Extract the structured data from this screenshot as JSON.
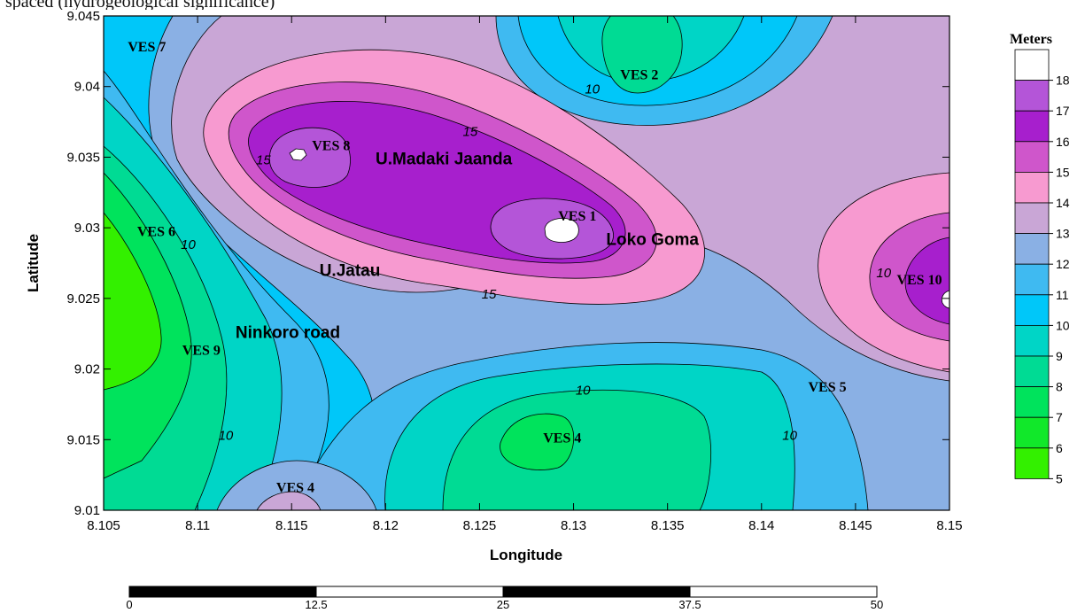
{
  "caption_fragment": "spaced (hydrogeological significance)",
  "map": {
    "xlabel": "Longitude",
    "ylabel": "Latitude",
    "x_ticks": [
      "8.105",
      "8.11",
      "8.115",
      "8.12",
      "8.125",
      "8.13",
      "8.135",
      "8.14",
      "8.145",
      "8.15"
    ],
    "y_ticks": [
      "9.045",
      "9.04",
      "9.035",
      "9.03",
      "9.025",
      "9.02",
      "9.015",
      "9.01"
    ],
    "xlim": [
      8.105,
      8.15
    ],
    "ylim": [
      9.01,
      9.045
    ],
    "contour_labels": [
      {
        "text": "10",
        "lon": 8.131,
        "lat": 9.0395
      },
      {
        "text": "15",
        "lon": 8.1245,
        "lat": 9.0365
      },
      {
        "text": "15",
        "lon": 8.1135,
        "lat": 9.0345
      },
      {
        "text": "10",
        "lon": 8.1095,
        "lat": 9.0285
      },
      {
        "text": "15",
        "lon": 8.1255,
        "lat": 9.025
      },
      {
        "text": "10",
        "lon": 8.1305,
        "lat": 9.0182
      },
      {
        "text": "10",
        "lon": 8.1115,
        "lat": 9.015
      },
      {
        "text": "10",
        "lon": 8.1415,
        "lat": 9.015
      },
      {
        "text": "10",
        "lon": 8.1465,
        "lat": 9.0265
      }
    ],
    "ves_points": [
      {
        "label": "VES 7",
        "lon": 8.1073,
        "lat": 9.0425
      },
      {
        "label": "VES 2",
        "lon": 8.1335,
        "lat": 9.0405
      },
      {
        "label": "VES 8",
        "lon": 8.1171,
        "lat": 9.0355
      },
      {
        "label": "VES 1",
        "lon": 8.1302,
        "lat": 9.0305
      },
      {
        "label": "VES 6",
        "lon": 8.1078,
        "lat": 9.0294
      },
      {
        "label": "VES 10",
        "lon": 8.1484,
        "lat": 9.026
      },
      {
        "label": "VES 9",
        "lon": 8.1102,
        "lat": 9.021
      },
      {
        "label": "VES 5",
        "lon": 8.1435,
        "lat": 9.0184
      },
      {
        "label": "VES 4",
        "lon": 8.1294,
        "lat": 9.0148
      },
      {
        "label": "VES 4",
        "lon": 8.1152,
        "lat": 9.0113
      }
    ],
    "places": [
      {
        "label": "U.Madaki Jaanda",
        "lon": 8.1231,
        "lat": 9.0345
      },
      {
        "label": "Loko Goma",
        "lon": 8.1342,
        "lat": 9.0288
      },
      {
        "label": "U.Jatau",
        "lon": 8.1181,
        "lat": 9.0266
      },
      {
        "label": "Ninkoro road",
        "lon": 8.1148,
        "lat": 9.0222
      }
    ]
  },
  "legend": {
    "title": "Meters",
    "levels": [
      "18",
      "17",
      "16",
      "15",
      "14",
      "13",
      "12",
      "11",
      "10",
      "9",
      "8",
      "7",
      "6",
      "5"
    ],
    "colors": [
      "#ffffff",
      "#b455d8",
      "#a71fcd",
      "#cf56cb",
      "#f79ad0",
      "#c9a6d6",
      "#8ab0e4",
      "#3fbaf1",
      "#00c7f9",
      "#00d5c6",
      "#00db94",
      "#00e35c",
      "#11e82a",
      "#33f000"
    ]
  },
  "scale_bar": {
    "ticks": [
      "0",
      "12.5",
      "25",
      "37.5",
      "50"
    ]
  }
}
